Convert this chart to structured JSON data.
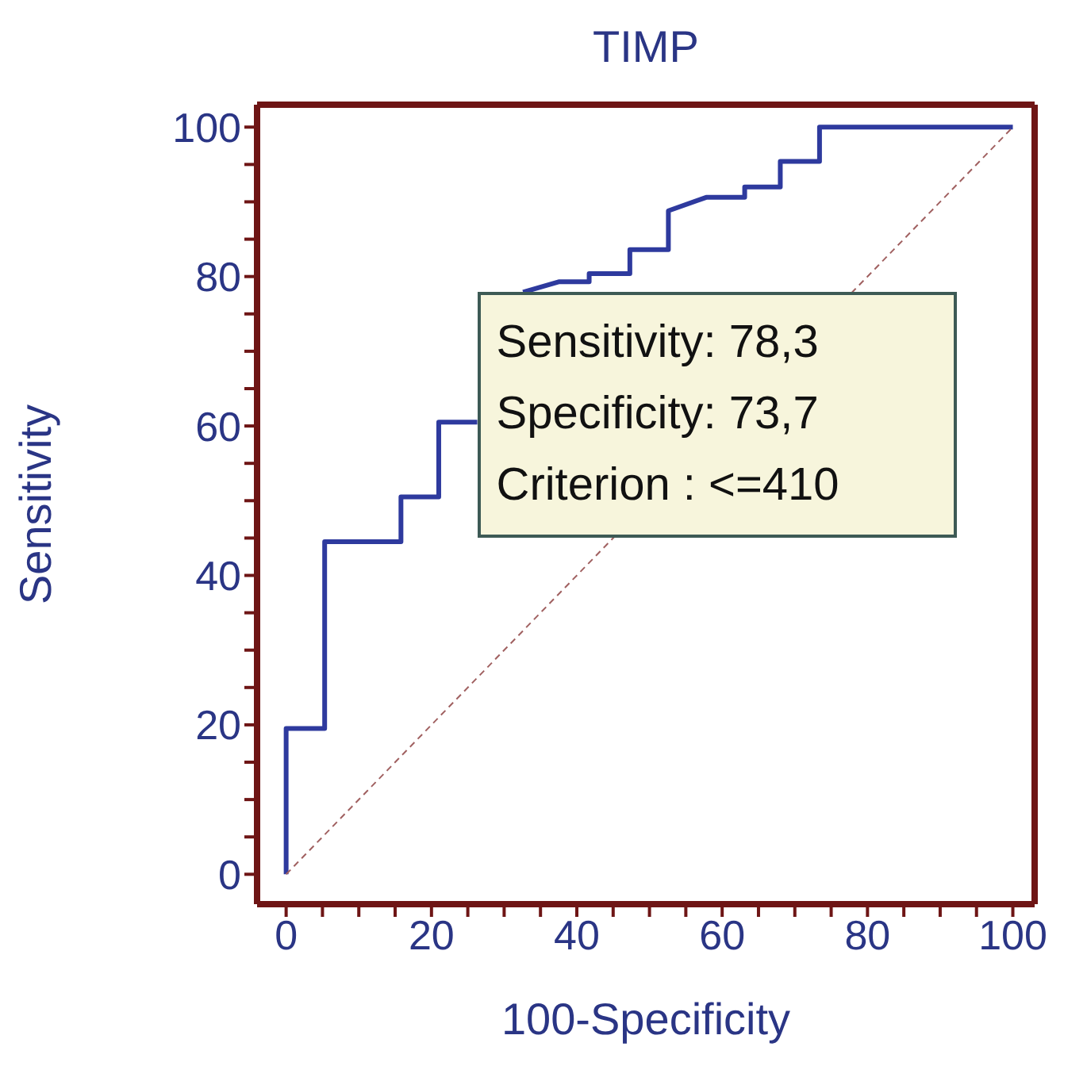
{
  "chart_data": {
    "type": "line",
    "title": "TIMP",
    "xlabel": "100-Specificity",
    "ylabel": "Sensitivity",
    "annotations": [
      "Sensitivity: 78,3",
      "Specificity: 73,7",
      "Criterion : <=410"
    ],
    "xlim": [
      -4,
      103
    ],
    "ylim": [
      -4,
      103
    ],
    "xticks": [
      0,
      {
        "value": 5,
        "label": null
      },
      {
        "value": 10,
        "label": null
      },
      {
        "value": 15,
        "label": null
      },
      20,
      {
        "value": 25,
        "label": null
      },
      {
        "value": 30,
        "label": null
      },
      {
        "value": 35,
        "label": null
      },
      40,
      {
        "value": 45,
        "label": null
      },
      {
        "value": 50,
        "label": null
      },
      {
        "value": 55,
        "label": null
      },
      60,
      {
        "value": 65,
        "label": null
      },
      {
        "value": 70,
        "label": null
      },
      {
        "value": 75,
        "label": null
      },
      80,
      {
        "value": 85,
        "label": null
      },
      {
        "value": 90,
        "label": null
      },
      {
        "value": 95,
        "label": null
      },
      100
    ],
    "yticks": [
      0,
      {
        "value": 5,
        "label": null
      },
      {
        "value": 10,
        "label": null
      },
      {
        "value": 15,
        "label": null
      },
      20,
      {
        "value": 25,
        "label": null
      },
      {
        "value": 30,
        "label": null
      },
      {
        "value": 35,
        "label": null
      },
      40,
      {
        "value": 45,
        "label": null
      },
      {
        "value": 50,
        "label": null
      },
      {
        "value": 55,
        "label": null
      },
      60,
      {
        "value": 65,
        "label": null
      },
      {
        "value": 70,
        "label": null
      },
      {
        "value": 75,
        "label": null
      },
      80,
      {
        "value": 85,
        "label": null
      },
      {
        "value": 90,
        "label": null
      },
      {
        "value": 95,
        "label": null
      },
      100
    ],
    "marker": "none",
    "series": [
      {
        "color": "#2e3a9e",
        "line_style": "solid",
        "x": [
          0,
          0,
          5.3,
          5.3,
          15.8,
          15.8,
          21,
          21,
          26.3,
          29,
          32.6,
          37.5,
          41.7,
          41.7,
          47.3,
          47.3,
          52.6,
          52.6,
          57.8,
          63.1,
          63.1,
          68,
          68,
          73.4,
          73.4,
          100
        ],
        "values": [
          0,
          19.5,
          19.5,
          44.5,
          44.5,
          50.5,
          50.5,
          60.5,
          60.5,
          null,
          77.9,
          79.3,
          79.3,
          80.4,
          80.4,
          83.6,
          83.6,
          88.8,
          90.6,
          90.6,
          92,
          92,
          95.4,
          95.4,
          100,
          100
        ]
      },
      {
        "color": "#a06060",
        "line_style": "dashed",
        "x": [
          0,
          100
        ],
        "values": [
          0,
          100
        ]
      }
    ]
  }
}
